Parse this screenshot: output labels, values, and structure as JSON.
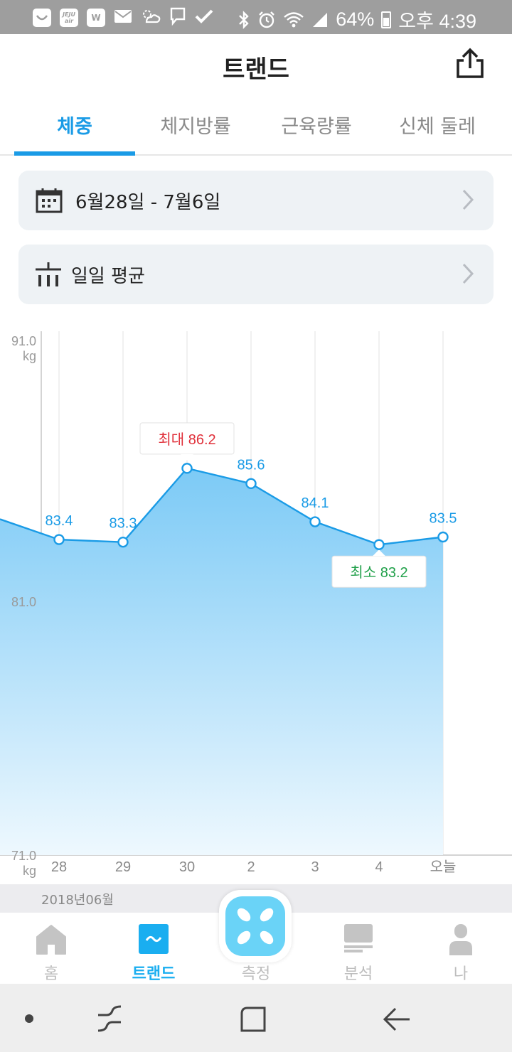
{
  "status_bar": {
    "battery": "64%",
    "time": "오후 4:39",
    "left_icons": [
      "smile-icon",
      "jeju-air-icon",
      "w-icon",
      "mail-icon",
      "weather-icon",
      "chat-icon",
      "check-icon"
    ],
    "jeju_top": "JEJU",
    "jeju_bottom": "air",
    "w_letter": "W"
  },
  "header": {
    "title": "트랜드"
  },
  "tabs": [
    {
      "label": "체중",
      "active": true
    },
    {
      "label": "체지방률",
      "active": false
    },
    {
      "label": "근육량률",
      "active": false
    },
    {
      "label": "신체 둘레",
      "active": false
    }
  ],
  "date_range": {
    "label": "6월28일 - 7월6일"
  },
  "aggregation": {
    "label": "일일 평균"
  },
  "chart_data": {
    "type": "area",
    "categories": [
      "28",
      "29",
      "30",
      "2",
      "3",
      "4",
      "오늘"
    ],
    "values": [
      83.4,
      83.3,
      86.2,
      85.6,
      84.1,
      83.2,
      83.5
    ],
    "value_labels": [
      "83.4",
      "83.3",
      "",
      "85.6",
      "84.1",
      "",
      "83.5"
    ],
    "y_ticks": [
      {
        "value": 91.0,
        "label": "91.0",
        "unit": "kg"
      },
      {
        "value": 81.0,
        "label": "81.0",
        "unit": ""
      },
      {
        "value": 71.0,
        "label": "71.0",
        "unit": "kg"
      }
    ],
    "ylim": [
      71.0,
      91.0
    ],
    "max_callout": {
      "index": 2,
      "label": "최대 86.2",
      "color": "#e0303a"
    },
    "min_callout": {
      "index": 5,
      "label": "최소 83.2",
      "color": "#21a04a"
    },
    "line_color": "#1a9be6",
    "fill_color_top": "#7ccaf6",
    "fill_color_bottom": "#eef8fe",
    "lead_in_value": 84.2
  },
  "month": {
    "label": "2018년06월"
  },
  "bottom_nav": [
    {
      "label": "홈",
      "icon": "home-icon",
      "active": false
    },
    {
      "label": "트랜드",
      "icon": "trend-icon",
      "active": true
    },
    {
      "label": "측정",
      "icon": "scale-icon",
      "active": false
    },
    {
      "label": "분석",
      "icon": "report-icon",
      "active": false
    },
    {
      "label": "나",
      "icon": "person-icon",
      "active": false
    }
  ],
  "colors": {
    "accent": "#1a9be6",
    "status_bar": "#9e9e9e",
    "card_bg": "#eef2f5"
  }
}
